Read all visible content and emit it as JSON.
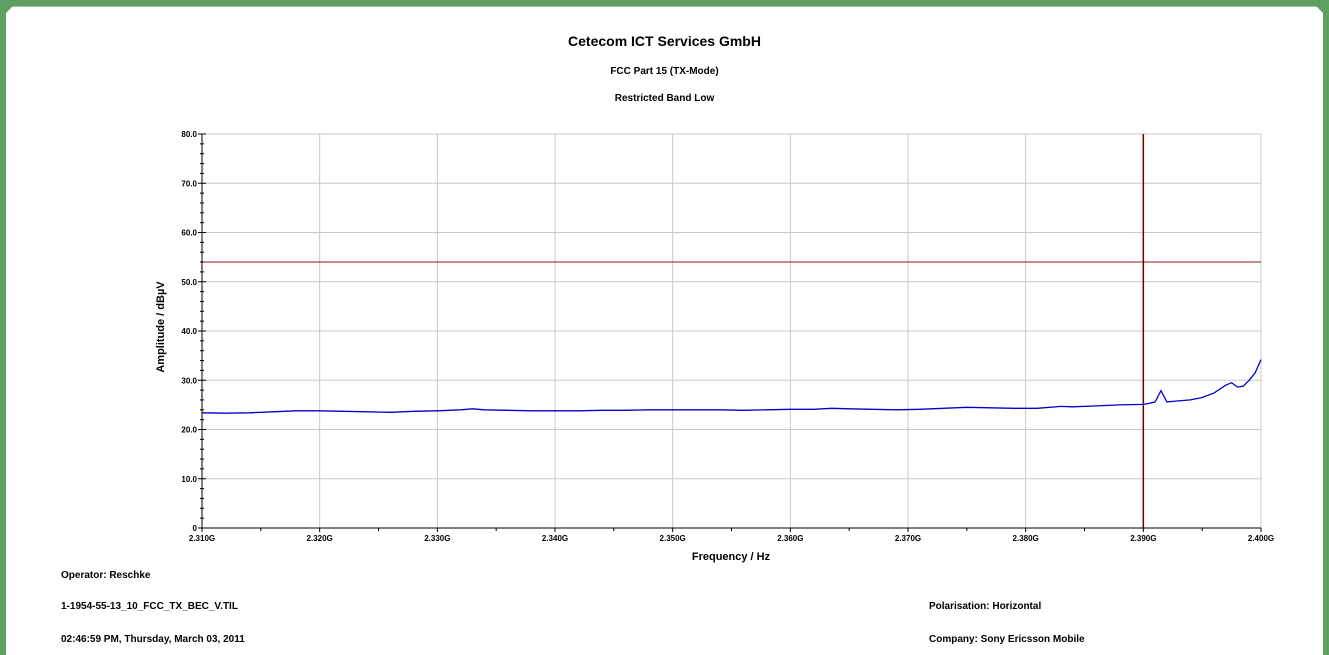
{
  "header": {
    "title": "Cetecom ICT Services GmbH",
    "subtitle1": "FCC Part 15 (TX-Mode)",
    "subtitle2": "Restricted Band Low"
  },
  "footer": {
    "operator": "Operator: Reschke",
    "filename": "1-1954-55-13_10_FCC_TX_BEC_V.TIL",
    "timestamp": "02:46:59 PM, Thursday, March 03, 2011",
    "polarisation": "Polarisation: Horizontal",
    "company": "Company: Sony Ericsson Mobile"
  },
  "colors": {
    "trace": "#0000c8",
    "limit": "#8b1a1a",
    "marker": "#6b0000",
    "grid": "#c8c8c8",
    "frame": "#5f9f5f"
  },
  "chart_data": {
    "type": "line",
    "xlabel": "Frequency / Hz",
    "ylabel": "Amplitude / dBµV",
    "xlim": [
      2.31,
      2.4
    ],
    "ylim": [
      0,
      80
    ],
    "x_ticks": [
      2.31,
      2.32,
      2.33,
      2.34,
      2.35,
      2.36,
      2.37,
      2.38,
      2.39,
      2.4
    ],
    "x_tick_labels": [
      "2.310G",
      "2.320G",
      "2.330G",
      "2.340G",
      "2.350G",
      "2.360G",
      "2.370G",
      "2.380G",
      "2.390G",
      "2.400G"
    ],
    "y_ticks": [
      0,
      10,
      20,
      30,
      40,
      50,
      60,
      70,
      80
    ],
    "y_tick_labels": [
      "0",
      "10.0",
      "20.0",
      "30.0",
      "40.0",
      "50.0",
      "60.0",
      "70.0",
      "80.0"
    ],
    "grid": true,
    "limit_line": {
      "y": 54
    },
    "marker_line": {
      "x": 2.39
    },
    "series": [
      {
        "x": [
          2.31,
          2.312,
          2.314,
          2.316,
          2.318,
          2.32,
          2.322,
          2.324,
          2.326,
          2.328,
          2.33,
          2.332,
          2.333,
          2.334,
          2.336,
          2.338,
          2.34,
          2.342,
          2.344,
          2.346,
          2.348,
          2.35,
          2.352,
          2.354,
          2.356,
          2.358,
          2.36,
          2.362,
          2.3635,
          2.365,
          2.367,
          2.369,
          2.371,
          2.373,
          2.375,
          2.377,
          2.379,
          2.381,
          2.383,
          2.384,
          2.386,
          2.388,
          2.39,
          2.3905,
          2.391,
          2.3915,
          2.392,
          2.393,
          2.394,
          2.395,
          2.396,
          2.397,
          2.3975,
          2.398,
          2.3985,
          2.399,
          2.3995,
          2.4
        ],
        "y": [
          23.4,
          23.3,
          23.4,
          23.6,
          23.8,
          23.8,
          23.7,
          23.6,
          23.5,
          23.7,
          23.8,
          24.0,
          24.2,
          24.0,
          23.9,
          23.8,
          23.8,
          23.8,
          23.9,
          23.9,
          24.0,
          24.0,
          24.0,
          24.0,
          23.9,
          24.0,
          24.1,
          24.1,
          24.3,
          24.2,
          24.1,
          24.0,
          24.1,
          24.3,
          24.5,
          24.4,
          24.3,
          24.3,
          24.7,
          24.6,
          24.8,
          25.0,
          25.1,
          25.3,
          25.6,
          27.9,
          25.6,
          25.8,
          26.0,
          26.5,
          27.4,
          29.0,
          29.5,
          28.6,
          28.8,
          30.0,
          31.5,
          34.2
        ]
      }
    ]
  }
}
